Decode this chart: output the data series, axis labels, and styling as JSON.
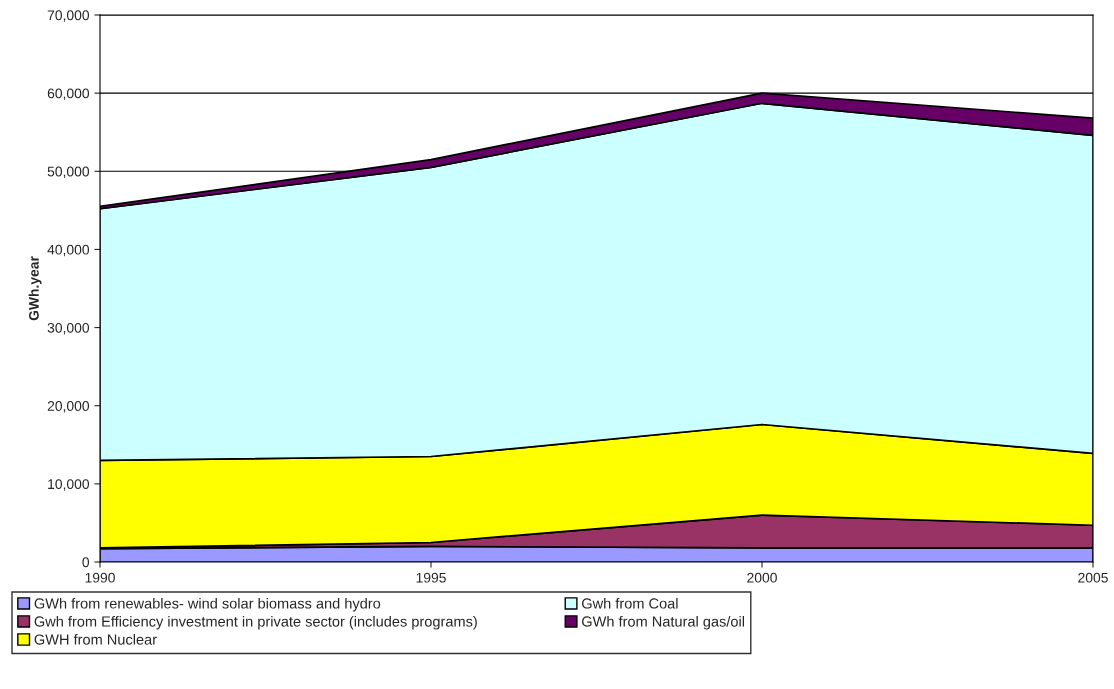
{
  "chart_data": {
    "type": "area",
    "stacked": true,
    "ylabel": "GWh.year",
    "x": [
      1990,
      1995,
      2000,
      2005
    ],
    "xlim": [
      1990,
      2005
    ],
    "xticks": [
      1990,
      1995,
      2000,
      2005
    ],
    "ylim": [
      0,
      70000
    ],
    "yticks": [
      {
        "value": 0,
        "label": "0"
      },
      {
        "value": 10000,
        "label": "10,000"
      },
      {
        "value": 20000,
        "label": "20,000"
      },
      {
        "value": 30000,
        "label": "30,000"
      },
      {
        "value": 40000,
        "label": "40,000"
      },
      {
        "value": 50000,
        "label": "50,000"
      },
      {
        "value": 60000,
        "label": "60,000"
      },
      {
        "value": 70000,
        "label": "70,000"
      }
    ],
    "grid": "y",
    "legend": "bottom",
    "series": [
      {
        "name": "GWh from renewables- wind solar biomass and hydro",
        "color": "#9999ff",
        "values": [
          1700,
          2000,
          1800,
          1800
        ]
      },
      {
        "name": "Gwh from Efficiency investment in private sector (includes programs)",
        "color": "#993366",
        "values": [
          100,
          500,
          4200,
          2900
        ]
      },
      {
        "name": "GWH from Nuclear",
        "color": "#ffff00",
        "values": [
          11200,
          11000,
          11600,
          9200
        ]
      },
      {
        "name": "Gwh from Coal",
        "color": "#ccffff",
        "values": [
          32200,
          37000,
          41100,
          40700
        ]
      },
      {
        "name": "GWh from Natural gas/oil",
        "color": "#660066",
        "values": [
          300,
          1000,
          1300,
          2200
        ]
      }
    ]
  }
}
